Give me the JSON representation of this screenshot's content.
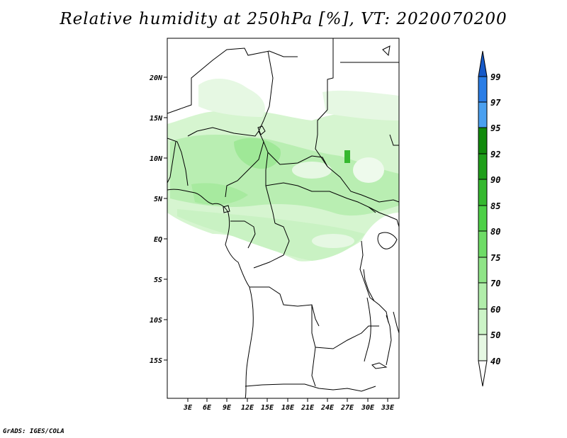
{
  "title": "Relative humidity at 250hPa [%], VT: 2020070200",
  "credit": "GrADS: IGES/COLA",
  "map": {
    "lat_labels": [
      "20N",
      "15N",
      "10N",
      "5N",
      "EQ",
      "5S",
      "10S",
      "15S"
    ],
    "lon_labels": [
      "3E",
      "6E",
      "9E",
      "12E",
      "15E",
      "18E",
      "21E",
      "24E",
      "27E",
      "30E",
      "33E"
    ],
    "region": "Central Africa",
    "lon_range": [
      0,
      34
    ],
    "lat_range": [
      -20,
      24
    ]
  },
  "colorbar": {
    "levels": [
      "40",
      "50",
      "60",
      "70",
      "75",
      "80",
      "85",
      "90",
      "92",
      "95",
      "97",
      "99"
    ],
    "colors": [
      "#ffffff",
      "#e6f8e3",
      "#ccf4c7",
      "#b1edaa",
      "#8fe487",
      "#6edc66",
      "#4dd047",
      "#35b82f",
      "#1f9f1a",
      "#118a0c",
      "#4aa0f0",
      "#2a7de6",
      "#1659c8"
    ]
  }
}
